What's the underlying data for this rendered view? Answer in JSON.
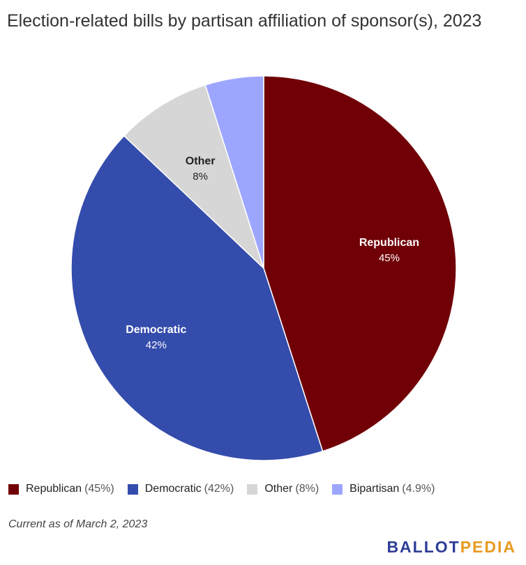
{
  "colors": {
    "republican": "#700006",
    "democratic": "#344cab",
    "other": "#d6d6d6",
    "bipartisan": "#9da6ff"
  },
  "chart_data": {
    "type": "pie",
    "title": "Election-related bills by partisan affiliation of sponsor(s), 2023",
    "slices": [
      {
        "label": "Republican",
        "value": 45,
        "label_text": "45%",
        "legend_text": "(45%)"
      },
      {
        "label": "Democratic",
        "value": 42,
        "label_text": "42%",
        "legend_text": "(42%)"
      },
      {
        "label": "Other",
        "value": 8,
        "label_text": "8%",
        "legend_text": "(8%)"
      },
      {
        "label": "Bipartisan",
        "value": 4.9,
        "label_text": "",
        "legend_text": "(4.9%)"
      }
    ],
    "legend_position": "bottom-left"
  },
  "footer": {
    "note": "Current as of March 2, 2023",
    "brand_part1": "BALLOT",
    "brand_part2": "PEDIA"
  }
}
